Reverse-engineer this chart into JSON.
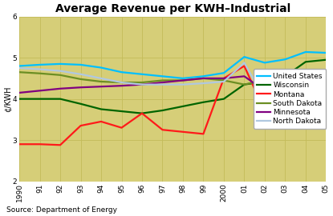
{
  "title": "Average Revenue per KWH–Industrial",
  "ylabel": "¢/KWH",
  "source": "Source: Department of Energy",
  "years": [
    1990,
    1991,
    1992,
    1993,
    1994,
    1995,
    1996,
    1997,
    1998,
    1999,
    2000,
    2001,
    2002,
    2003,
    2004,
    2005
  ],
  "xlabels": [
    "1990",
    "91",
    "92",
    "93",
    "94",
    "95",
    "96",
    "97",
    "98",
    "99",
    "2000",
    "01",
    "02",
    "03",
    "04",
    "05"
  ],
  "ylim": [
    2,
    6
  ],
  "yticks": [
    2,
    3,
    4,
    5,
    6
  ],
  "series": {
    "United States": {
      "color": "#00BFFF",
      "data": [
        4.8,
        4.83,
        4.85,
        4.83,
        4.76,
        4.65,
        4.6,
        4.55,
        4.5,
        4.55,
        4.63,
        5.02,
        4.88,
        4.96,
        5.14,
        5.12
      ]
    },
    "Wisconsin": {
      "color": "#006400",
      "data": [
        4.0,
        4.0,
        4.0,
        3.88,
        3.75,
        3.7,
        3.65,
        3.72,
        3.82,
        3.92,
        4.0,
        4.35,
        4.42,
        4.55,
        4.9,
        4.95
      ]
    },
    "Montana": {
      "color": "#FF1A1A",
      "data": [
        2.9,
        2.9,
        2.88,
        3.35,
        3.45,
        3.3,
        3.65,
        3.25,
        3.2,
        3.15,
        4.5,
        4.8,
        3.7,
        4.0,
        4.1,
        4.3
      ]
    },
    "South Dakota": {
      "color": "#6B8E23",
      "data": [
        4.65,
        4.62,
        4.58,
        4.48,
        4.42,
        4.4,
        4.4,
        4.45,
        4.45,
        4.5,
        4.45,
        4.35,
        4.45,
        4.5,
        4.6,
        4.62
      ]
    },
    "Minnesota": {
      "color": "#800080",
      "data": [
        4.15,
        4.2,
        4.25,
        4.28,
        4.3,
        4.32,
        4.35,
        4.4,
        4.45,
        4.5,
        4.5,
        4.55,
        4.2,
        4.35,
        4.65,
        4.65
      ]
    },
    "North Dakota": {
      "color": "#B0C8E0",
      "data": [
        4.75,
        4.72,
        4.68,
        4.6,
        4.5,
        4.4,
        4.35,
        4.35,
        4.35,
        4.38,
        4.42,
        4.88,
        4.0,
        3.98,
        4.05,
        4.08
      ]
    }
  },
  "fig_bg_color": "#FFFFFF",
  "plot_bg_color": "#D6CE78",
  "grid_color": "#C4BC5A",
  "title_fontsize": 10,
  "label_fontsize": 7,
  "legend_fontsize": 6.5,
  "tick_fontsize": 6.5,
  "linewidth": 1.6
}
